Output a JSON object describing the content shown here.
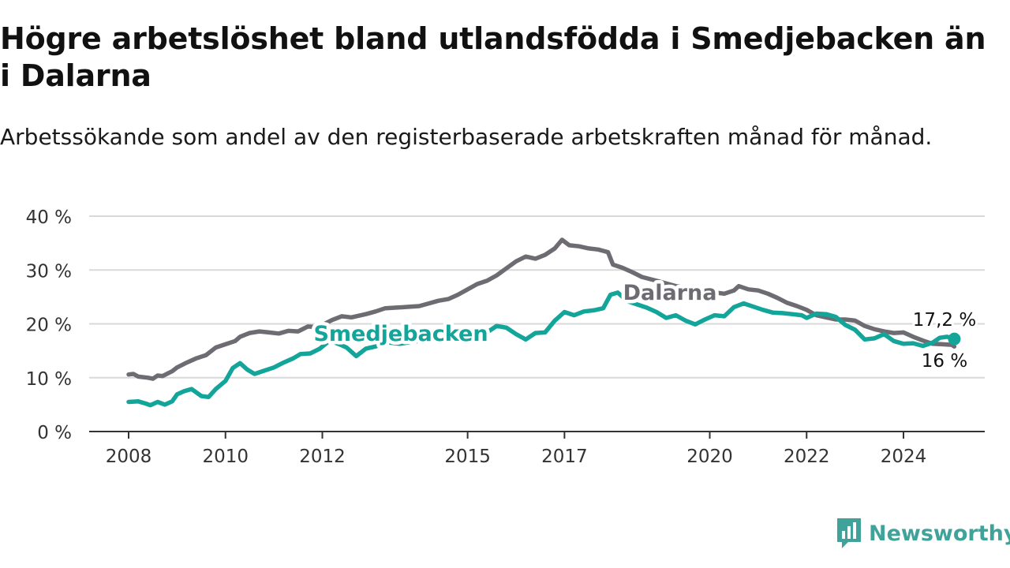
{
  "title": "Högre arbetslöshet bland utlandsfödda i Smedjebacken än i Dalarna",
  "subtitle": "Arbetssökande som andel av den registerbaserade arbetskraften månad för månad.",
  "brand": {
    "name": "Newsworthy",
    "color": "#3fa39a",
    "logo_icon": "bar-chart-speech-bubble-icon"
  },
  "chart_data": {
    "type": "line",
    "xlabel": "",
    "ylabel": "",
    "ylim": [
      0,
      40
    ],
    "y_ticks": [
      0,
      10,
      20,
      30,
      40
    ],
    "y_tick_labels": [
      "0 %",
      "10 %",
      "20 %",
      "30 %",
      "40 %"
    ],
    "x_ticks": [
      2008,
      2010,
      2012,
      2015,
      2017,
      2020,
      2022,
      2024
    ],
    "x_tick_labels": [
      "2008",
      "2010",
      "2012",
      "2015",
      "2017",
      "2020",
      "2022",
      "2024"
    ],
    "xlim": [
      2007.2,
      2025.7
    ],
    "grid": "horizontal",
    "series": [
      {
        "name": "Dalarna",
        "color": "#6e6c72",
        "end_label": "16 %",
        "points": [
          [
            2008.0,
            10.6
          ],
          [
            2008.1,
            10.7
          ],
          [
            2008.2,
            10.2
          ],
          [
            2008.4,
            10.0
          ],
          [
            2008.5,
            9.8
          ],
          [
            2008.6,
            10.4
          ],
          [
            2008.7,
            10.3
          ],
          [
            2008.9,
            11.2
          ],
          [
            2009.0,
            11.9
          ],
          [
            2009.2,
            12.8
          ],
          [
            2009.4,
            13.6
          ],
          [
            2009.6,
            14.2
          ],
          [
            2009.8,
            15.6
          ],
          [
            2010.0,
            16.2
          ],
          [
            2010.2,
            16.8
          ],
          [
            2010.3,
            17.6
          ],
          [
            2010.5,
            18.3
          ],
          [
            2010.7,
            18.6
          ],
          [
            2010.9,
            18.4
          ],
          [
            2011.1,
            18.2
          ],
          [
            2011.3,
            18.7
          ],
          [
            2011.5,
            18.6
          ],
          [
            2011.7,
            19.5
          ],
          [
            2011.9,
            19.4
          ],
          [
            2012.0,
            19.8
          ],
          [
            2012.2,
            20.7
          ],
          [
            2012.4,
            21.4
          ],
          [
            2012.6,
            21.2
          ],
          [
            2012.9,
            21.8
          ],
          [
            2013.1,
            22.3
          ],
          [
            2013.3,
            22.9
          ],
          [
            2013.5,
            23.0
          ],
          [
            2013.7,
            23.1
          ],
          [
            2014.0,
            23.3
          ],
          [
            2014.2,
            23.8
          ],
          [
            2014.4,
            24.3
          ],
          [
            2014.6,
            24.6
          ],
          [
            2014.8,
            25.4
          ],
          [
            2015.0,
            26.4
          ],
          [
            2015.2,
            27.4
          ],
          [
            2015.4,
            28.0
          ],
          [
            2015.6,
            29.0
          ],
          [
            2015.8,
            30.3
          ],
          [
            2016.0,
            31.6
          ],
          [
            2016.2,
            32.5
          ],
          [
            2016.4,
            32.1
          ],
          [
            2016.6,
            32.8
          ],
          [
            2016.8,
            34.0
          ],
          [
            2016.95,
            35.6
          ],
          [
            2017.1,
            34.6
          ],
          [
            2017.3,
            34.4
          ],
          [
            2017.5,
            34.0
          ],
          [
            2017.7,
            33.8
          ],
          [
            2017.9,
            33.3
          ],
          [
            2018.0,
            31.0
          ],
          [
            2018.2,
            30.4
          ],
          [
            2018.4,
            29.6
          ],
          [
            2018.6,
            28.7
          ],
          [
            2018.9,
            28.0
          ],
          [
            2019.3,
            27.0
          ],
          [
            2019.8,
            26.2
          ],
          [
            2020.3,
            25.6
          ],
          [
            2020.5,
            26.2
          ],
          [
            2020.6,
            27.0
          ],
          [
            2020.8,
            26.4
          ],
          [
            2021.0,
            26.2
          ],
          [
            2021.2,
            25.6
          ],
          [
            2021.4,
            24.8
          ],
          [
            2021.6,
            23.9
          ],
          [
            2021.8,
            23.3
          ],
          [
            2022.0,
            22.6
          ],
          [
            2022.2,
            21.6
          ],
          [
            2022.4,
            21.2
          ],
          [
            2022.6,
            20.8
          ],
          [
            2022.8,
            20.8
          ],
          [
            2023.0,
            20.6
          ],
          [
            2023.2,
            19.6
          ],
          [
            2023.4,
            19.0
          ],
          [
            2023.6,
            18.6
          ],
          [
            2023.8,
            18.3
          ],
          [
            2024.0,
            18.4
          ],
          [
            2024.2,
            17.6
          ],
          [
            2024.4,
            16.9
          ],
          [
            2024.6,
            16.3
          ],
          [
            2024.8,
            16.2
          ],
          [
            2025.0,
            16.1
          ],
          [
            2025.05,
            15.8
          ]
        ]
      },
      {
        "name": "Smedjebacken",
        "color": "#13a59a",
        "end_label": "17,2 %",
        "points": [
          [
            2008.0,
            5.5
          ],
          [
            2008.2,
            5.6
          ],
          [
            2008.35,
            5.2
          ],
          [
            2008.45,
            4.9
          ],
          [
            2008.6,
            5.5
          ],
          [
            2008.75,
            5.0
          ],
          [
            2008.9,
            5.6
          ],
          [
            2009.0,
            6.9
          ],
          [
            2009.15,
            7.5
          ],
          [
            2009.3,
            7.9
          ],
          [
            2009.5,
            6.6
          ],
          [
            2009.65,
            6.4
          ],
          [
            2009.8,
            7.9
          ],
          [
            2010.0,
            9.4
          ],
          [
            2010.15,
            11.8
          ],
          [
            2010.3,
            12.7
          ],
          [
            2010.45,
            11.5
          ],
          [
            2010.6,
            10.7
          ],
          [
            2010.8,
            11.3
          ],
          [
            2011.0,
            11.9
          ],
          [
            2011.2,
            12.8
          ],
          [
            2011.4,
            13.6
          ],
          [
            2011.55,
            14.4
          ],
          [
            2011.75,
            14.5
          ],
          [
            2011.95,
            15.4
          ],
          [
            2012.15,
            16.9
          ],
          [
            2012.35,
            16.2
          ],
          [
            2012.5,
            15.6
          ],
          [
            2012.7,
            14.0
          ],
          [
            2012.9,
            15.4
          ],
          [
            2013.1,
            15.8
          ],
          [
            2013.3,
            16.6
          ],
          [
            2013.6,
            16.3
          ],
          [
            2013.9,
            16.7
          ],
          [
            2014.2,
            17.1
          ],
          [
            2014.5,
            16.8
          ],
          [
            2014.8,
            17.3
          ],
          [
            2015.1,
            17.9
          ],
          [
            2015.4,
            18.4
          ],
          [
            2015.6,
            19.6
          ],
          [
            2015.8,
            19.3
          ],
          [
            2016.0,
            18.1
          ],
          [
            2016.2,
            17.1
          ],
          [
            2016.4,
            18.3
          ],
          [
            2016.6,
            18.4
          ],
          [
            2016.8,
            20.6
          ],
          [
            2017.0,
            22.2
          ],
          [
            2017.2,
            21.6
          ],
          [
            2017.4,
            22.3
          ],
          [
            2017.6,
            22.5
          ],
          [
            2017.8,
            22.9
          ],
          [
            2017.95,
            25.4
          ],
          [
            2018.1,
            25.8
          ],
          [
            2018.3,
            24.2
          ],
          [
            2018.5,
            23.6
          ],
          [
            2018.7,
            23.0
          ],
          [
            2018.9,
            22.2
          ],
          [
            2019.1,
            21.1
          ],
          [
            2019.3,
            21.6
          ],
          [
            2019.5,
            20.6
          ],
          [
            2019.7,
            19.9
          ],
          [
            2019.9,
            20.8
          ],
          [
            2020.1,
            21.6
          ],
          [
            2020.3,
            21.4
          ],
          [
            2020.5,
            23.1
          ],
          [
            2020.7,
            23.8
          ],
          [
            2020.9,
            23.2
          ],
          [
            2021.1,
            22.6
          ],
          [
            2021.3,
            22.1
          ],
          [
            2021.5,
            22.0
          ],
          [
            2021.7,
            21.8
          ],
          [
            2021.9,
            21.6
          ],
          [
            2022.0,
            21.1
          ],
          [
            2022.2,
            21.9
          ],
          [
            2022.4,
            21.8
          ],
          [
            2022.6,
            21.3
          ],
          [
            2022.8,
            19.8
          ],
          [
            2023.0,
            18.9
          ],
          [
            2023.2,
            17.1
          ],
          [
            2023.4,
            17.3
          ],
          [
            2023.6,
            18.1
          ],
          [
            2023.8,
            16.8
          ],
          [
            2024.0,
            16.3
          ],
          [
            2024.2,
            16.4
          ],
          [
            2024.4,
            15.9
          ],
          [
            2024.6,
            16.5
          ],
          [
            2024.75,
            17.4
          ],
          [
            2024.9,
            17.6
          ],
          [
            2025.05,
            17.2
          ]
        ]
      }
    ]
  }
}
